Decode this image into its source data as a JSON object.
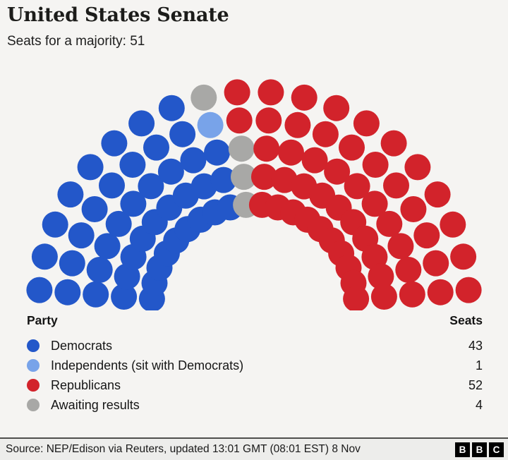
{
  "header": {
    "title": "United States Senate",
    "subtitle": "Seats for a majority: 51"
  },
  "legend": {
    "party_header": "Party",
    "seats_header": "Seats"
  },
  "chart_data": {
    "type": "parliament",
    "title": "United States Senate",
    "total_seats": 100,
    "seats_for_majority": 51,
    "layout": {
      "rows": 5,
      "seats_per_row": 20,
      "arc_degrees": 180,
      "fill_direction": "left-to-right, inner-to-outer within each spoke"
    },
    "parties": [
      {
        "name": "Democrats",
        "seats": 43,
        "color": "#2357C9"
      },
      {
        "name": "Independents (sit with Democrats)",
        "seats": 1,
        "color": "#78A3E9"
      },
      {
        "name": "Republicans",
        "seats": 52,
        "color": "#D2232B"
      },
      {
        "name": "Awaiting results",
        "seats": 4,
        "color": "#A8A8A6"
      }
    ],
    "fill_order": [
      "Democrats",
      "Independents (sit with Democrats)",
      "Awaiting results",
      "Republicans"
    ]
  },
  "footer": {
    "source": "Source: NEP/Edison via Reuters, updated 13:01 GMT (08:01 EST) 8 Nov",
    "logo_letters": [
      "B",
      "B",
      "C"
    ]
  }
}
